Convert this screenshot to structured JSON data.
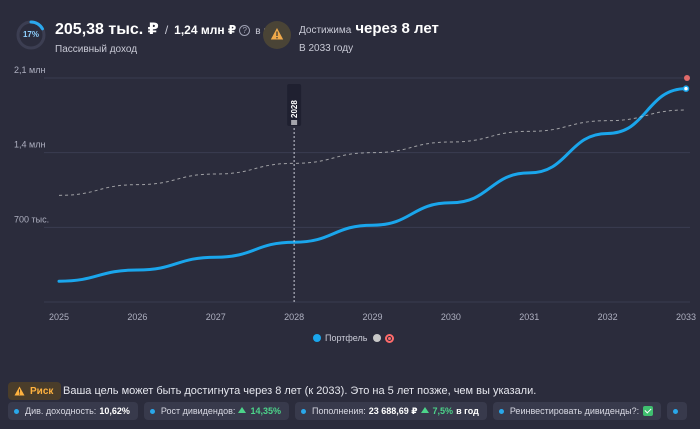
{
  "header": {
    "progress_percent": 17,
    "progress_label": "17%",
    "income_value": "205,38 тыс. ₽",
    "income_separator": "/",
    "income_target": "1,24 млн ₽",
    "help_icon": "?",
    "income_period": "в год",
    "income_subtitle": "Пассивный доход",
    "reach_label": "Достижима",
    "reach_value": "через 8 лет",
    "reach_year": "В 2033 году",
    "warning_icon": "warning-triangle-icon"
  },
  "chart_data": {
    "type": "line",
    "x": [
      2025,
      2026,
      2027,
      2028,
      2029,
      2030,
      2031,
      2032,
      2033
    ],
    "y_ticks": [
      {
        "value": 700000,
        "label": "700 тыс."
      },
      {
        "value": 1400000,
        "label": "1,4 млн"
      },
      {
        "value": 2100000,
        "label": "2,1 млн"
      }
    ],
    "ylim": [
      0,
      2100000
    ],
    "series": [
      {
        "name": "Портфель",
        "color": "#1aa6ec",
        "style": "solid",
        "values": [
          195000,
          300000,
          420000,
          560000,
          720000,
          930000,
          1210000,
          1580000,
          2000000
        ]
      },
      {
        "name": "",
        "color": "#c8c8c8",
        "style": "dashed",
        "values": [
          1000000,
          1100000,
          1200000,
          1300000,
          1400000,
          1500000,
          1600000,
          1700000,
          1800000
        ]
      }
    ],
    "marker_year": 2028,
    "marker_label": "2028",
    "grid": true,
    "legend_position": "bottom-center"
  },
  "legend": {
    "portfolio_label": "Портфель",
    "portfolio_color": "#1aa6ec",
    "target_color": "#c8c8c8"
  },
  "risk": {
    "badge_label": "Риск",
    "message": "Ваша цель может быть достигнута через 8 лет (к 2033). Это на 5 лет позже, чем вы указали."
  },
  "chips": {
    "yield_label": "Див. доходность:",
    "yield_value": "10,62%",
    "growth_label": "Рост дивидендов:",
    "growth_value": "14,35%",
    "topup_label": "Пополнения:",
    "topup_value": "23 688,69 ₽",
    "topup_growth": "7,5%",
    "topup_period": "в год",
    "reinvest_label": "Реинвестировать дивиденды?:"
  }
}
